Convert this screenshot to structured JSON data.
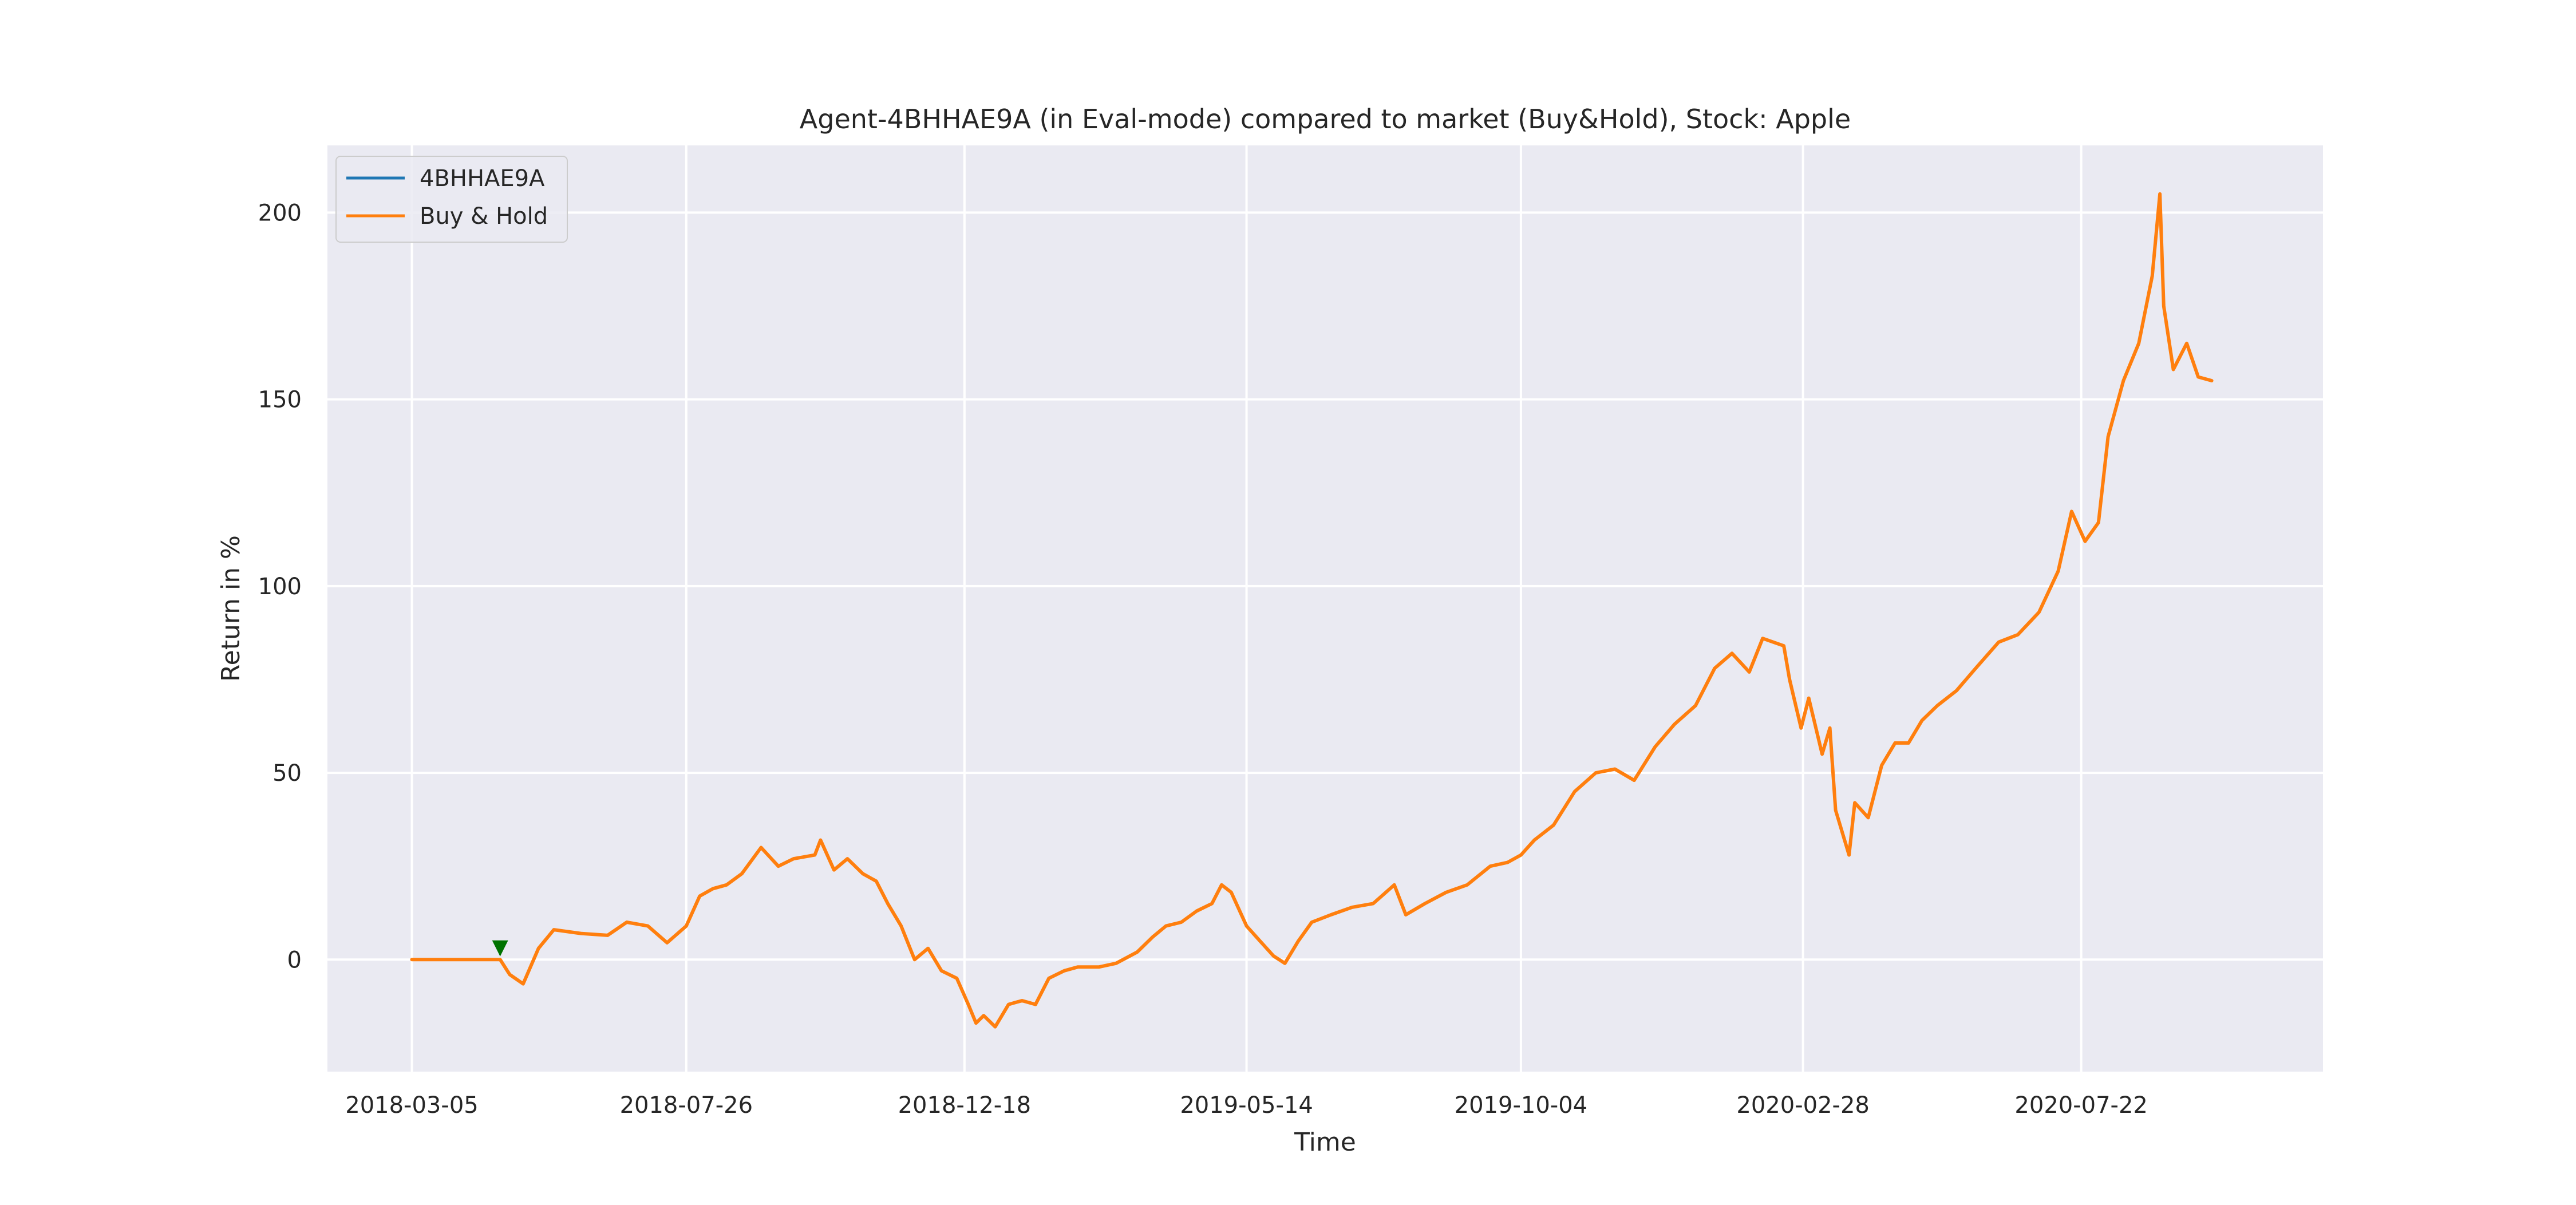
{
  "chart_data": {
    "type": "line",
    "title": "Agent-4BHHAE9A (in Eval-mode) compared to market (Buy&Hold), Stock: Apple",
    "xlabel": "Time",
    "ylabel": "Return in %",
    "x_axis_type": "date",
    "xlim": [
      "2018-01-20",
      "2020-11-25"
    ],
    "ylim": [
      -30,
      218
    ],
    "x_ticks": [
      "2018-03-05",
      "2018-07-26",
      "2018-12-18",
      "2019-05-14",
      "2019-10-04",
      "2020-02-28",
      "2020-07-22"
    ],
    "y_ticks": [
      0,
      50,
      100,
      150,
      200
    ],
    "grid": true,
    "legend_position": "top-left",
    "series": [
      {
        "name": "4BHHAE9A",
        "color": "#1f77b4",
        "points": []
      },
      {
        "name": "Buy & Hold",
        "color": "#ff7f0e",
        "points": [
          [
            "2018-03-05",
            0
          ],
          [
            "2018-04-20",
            0
          ],
          [
            "2018-04-25",
            -4
          ],
          [
            "2018-05-02",
            -6.5
          ],
          [
            "2018-05-10",
            3
          ],
          [
            "2018-05-18",
            8
          ],
          [
            "2018-06-01",
            7
          ],
          [
            "2018-06-15",
            6.5
          ],
          [
            "2018-06-25",
            10
          ],
          [
            "2018-07-06",
            9
          ],
          [
            "2018-07-16",
            4.5
          ],
          [
            "2018-07-26",
            9
          ],
          [
            "2018-08-02",
            17
          ],
          [
            "2018-08-09",
            19
          ],
          [
            "2018-08-16",
            20
          ],
          [
            "2018-08-24",
            23
          ],
          [
            "2018-09-03",
            30
          ],
          [
            "2018-09-12",
            25
          ],
          [
            "2018-09-20",
            27
          ],
          [
            "2018-10-01",
            28
          ],
          [
            "2018-10-04",
            32
          ],
          [
            "2018-10-11",
            24
          ],
          [
            "2018-10-18",
            27
          ],
          [
            "2018-10-26",
            23
          ],
          [
            "2018-11-02",
            21
          ],
          [
            "2018-11-08",
            15
          ],
          [
            "2018-11-15",
            9
          ],
          [
            "2018-11-22",
            0
          ],
          [
            "2018-11-29",
            3
          ],
          [
            "2018-12-06",
            -3
          ],
          [
            "2018-12-14",
            -5
          ],
          [
            "2018-12-20",
            -12
          ],
          [
            "2018-12-24",
            -17
          ],
          [
            "2018-12-28",
            -15
          ],
          [
            "2019-01-03",
            -18
          ],
          [
            "2019-01-10",
            -12
          ],
          [
            "2019-01-17",
            -11
          ],
          [
            "2019-01-24",
            -12
          ],
          [
            "2019-01-31",
            -5
          ],
          [
            "2019-02-08",
            -3
          ],
          [
            "2019-02-15",
            -2
          ],
          [
            "2019-02-26",
            -2
          ],
          [
            "2019-03-07",
            -1
          ],
          [
            "2019-03-18",
            2
          ],
          [
            "2019-03-26",
            6
          ],
          [
            "2019-04-02",
            9
          ],
          [
            "2019-04-10",
            10
          ],
          [
            "2019-04-18",
            13
          ],
          [
            "2019-04-26",
            15
          ],
          [
            "2019-05-01",
            20
          ],
          [
            "2019-05-06",
            18
          ],
          [
            "2019-05-14",
            9
          ],
          [
            "2019-05-21",
            5
          ],
          [
            "2019-05-28",
            1
          ],
          [
            "2019-06-03",
            -1
          ],
          [
            "2019-06-10",
            5
          ],
          [
            "2019-06-17",
            10
          ],
          [
            "2019-06-27",
            12
          ],
          [
            "2019-07-08",
            14
          ],
          [
            "2019-07-19",
            15
          ],
          [
            "2019-07-30",
            20
          ],
          [
            "2019-08-05",
            12
          ],
          [
            "2019-08-15",
            15
          ],
          [
            "2019-08-26",
            18
          ],
          [
            "2019-09-06",
            20
          ],
          [
            "2019-09-18",
            25
          ],
          [
            "2019-09-27",
            26
          ],
          [
            "2019-10-04",
            28
          ],
          [
            "2019-10-11",
            32
          ],
          [
            "2019-10-21",
            36
          ],
          [
            "2019-11-01",
            45
          ],
          [
            "2019-11-12",
            50
          ],
          [
            "2019-11-22",
            51
          ],
          [
            "2019-12-02",
            48
          ],
          [
            "2019-12-13",
            57
          ],
          [
            "2019-12-23",
            63
          ],
          [
            "2020-01-03",
            68
          ],
          [
            "2020-01-13",
            78
          ],
          [
            "2020-01-22",
            82
          ],
          [
            "2020-01-31",
            77
          ],
          [
            "2020-02-07",
            86
          ],
          [
            "2020-02-18",
            84
          ],
          [
            "2020-02-21",
            75
          ],
          [
            "2020-02-27",
            62
          ],
          [
            "2020-03-02",
            70
          ],
          [
            "2020-03-09",
            55
          ],
          [
            "2020-03-13",
            62
          ],
          [
            "2020-03-16",
            40
          ],
          [
            "2020-03-23",
            28
          ],
          [
            "2020-03-26",
            42
          ],
          [
            "2020-04-02",
            38
          ],
          [
            "2020-04-09",
            52
          ],
          [
            "2020-04-16",
            58
          ],
          [
            "2020-04-23",
            58
          ],
          [
            "2020-04-30",
            64
          ],
          [
            "2020-05-08",
            68
          ],
          [
            "2020-05-18",
            72
          ],
          [
            "2020-05-28",
            78
          ],
          [
            "2020-06-09",
            85
          ],
          [
            "2020-06-19",
            87
          ],
          [
            "2020-06-30",
            93
          ],
          [
            "2020-07-10",
            104
          ],
          [
            "2020-07-17",
            120
          ],
          [
            "2020-07-24",
            112
          ],
          [
            "2020-07-31",
            117
          ],
          [
            "2020-08-05",
            140
          ],
          [
            "2020-08-13",
            155
          ],
          [
            "2020-08-21",
            165
          ],
          [
            "2020-08-28",
            183
          ],
          [
            "2020-09-01",
            205
          ],
          [
            "2020-09-03",
            175
          ],
          [
            "2020-09-08",
            158
          ],
          [
            "2020-09-15",
            165
          ],
          [
            "2020-09-21",
            156
          ],
          [
            "2020-09-28",
            155
          ]
        ]
      }
    ],
    "markers": [
      {
        "type": "sell",
        "shape": "triangle-down",
        "color": "#007300",
        "x": "2018-04-20",
        "y": 3
      }
    ]
  }
}
